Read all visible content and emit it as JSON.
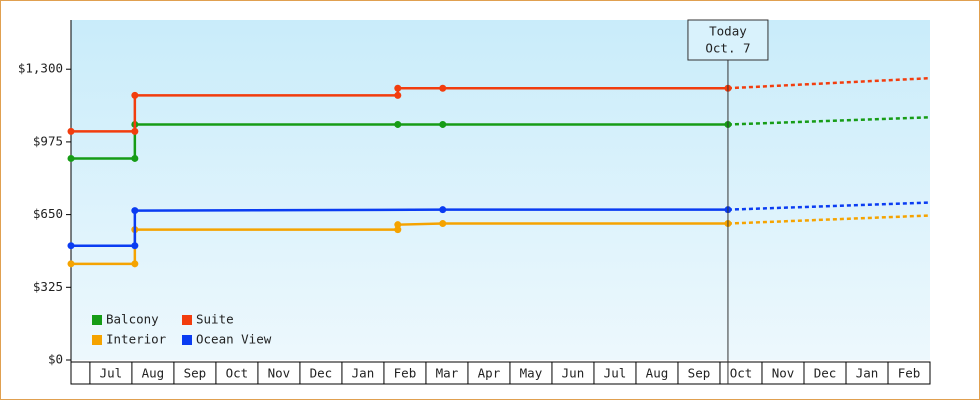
{
  "chart_data": {
    "type": "line",
    "categories": [
      null,
      "Jul",
      "Aug",
      "Sep",
      "Oct",
      "Nov",
      "Dec",
      "Jan",
      "Feb",
      "Mar",
      "Apr",
      "May",
      "Jun",
      "Jul",
      "Aug",
      "Sep",
      "Oct",
      "Nov",
      "Dec",
      "Jan",
      "Feb"
    ],
    "xlim": [
      -0.45,
      20
    ],
    "ylim": [
      0,
      1520
    ],
    "yticks": [
      {
        "value": 0,
        "label": "$0"
      },
      {
        "value": 325,
        "label": "$325"
      },
      {
        "value": 650,
        "label": "$650"
      },
      {
        "value": 975,
        "label": "$975"
      },
      {
        "value": 1300,
        "label": "$1,300"
      }
    ],
    "today": {
      "x": 15.19,
      "label": "Today",
      "date": "Oct. 7"
    },
    "series": [
      {
        "name": "Balcony",
        "color": "#169c16",
        "x": [
          -0.45,
          1.07,
          1.07,
          7.33,
          8.4,
          15.19
        ],
        "values": [
          901,
          901,
          1053,
          1053,
          1053,
          1053
        ],
        "forecast_x": [
          15.19,
          20
        ],
        "forecast_values": [
          1053,
          1085
        ]
      },
      {
        "name": "Suite",
        "color": "#f23d0e",
        "x": [
          -0.45,
          1.07,
          1.07,
          7.33,
          7.33,
          8.4,
          15.19
        ],
        "values": [
          1022,
          1022,
          1183,
          1183,
          1215,
          1215,
          1215
        ],
        "forecast_x": [
          15.19,
          20
        ],
        "forecast_values": [
          1215,
          1260
        ]
      },
      {
        "name": "Interior",
        "color": "#f5a300",
        "x": [
          -0.45,
          1.07,
          1.07,
          7.33,
          7.33,
          8.4,
          15.19
        ],
        "values": [
          430,
          430,
          583,
          583,
          605,
          610,
          610
        ],
        "forecast_x": [
          15.19,
          20
        ],
        "forecast_values": [
          610,
          646
        ]
      },
      {
        "name": "Ocean View",
        "color": "#0a3cf2",
        "x": [
          -0.45,
          1.07,
          1.07,
          8.4,
          15.19
        ],
        "values": [
          511,
          511,
          668,
          672,
          672
        ],
        "forecast_x": [
          15.19,
          20
        ],
        "forecast_values": [
          672,
          704
        ]
      }
    ]
  }
}
